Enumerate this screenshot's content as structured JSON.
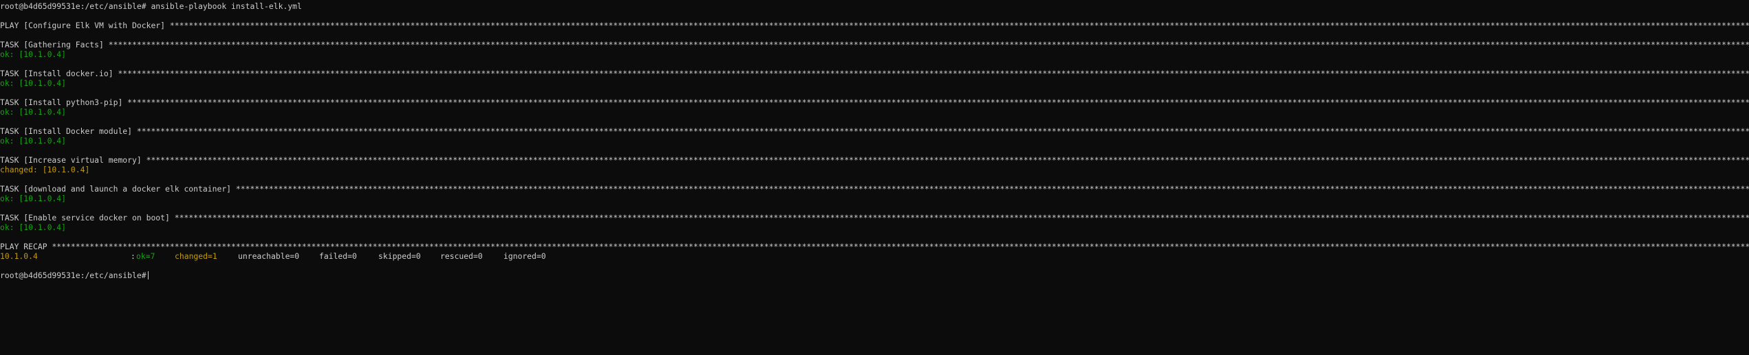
{
  "terminal": {
    "prompt": "root@b4d65d99531e:/etc/ansible#",
    "command": "ansible-playbook install-elk.yml",
    "play": {
      "header": "PLAY [Configure Elk VM with Docker]"
    },
    "tasks": [
      {
        "header": "TASK [Gathering Facts]",
        "status": "ok",
        "result": "ok: [10.1.0.4]"
      },
      {
        "header": "TASK [Install docker.io]",
        "status": "ok",
        "result": "ok: [10.1.0.4]"
      },
      {
        "header": "TASK [Install python3-pip]",
        "status": "ok",
        "result": "ok: [10.1.0.4]"
      },
      {
        "header": "TASK [Install Docker module]",
        "status": "ok",
        "result": "ok: [10.1.0.4]"
      },
      {
        "header": "TASK [Increase virtual memory]",
        "status": "changed",
        "result": "changed: [10.1.0.4]"
      },
      {
        "header": "TASK [download and launch a docker elk container]",
        "status": "ok",
        "result": "ok: [10.1.0.4]"
      },
      {
        "header": "TASK [Enable service docker on boot]",
        "status": "ok",
        "result": "ok: [10.1.0.4]"
      }
    ],
    "recap": {
      "header": "PLAY RECAP",
      "host": "10.1.0.4",
      "colon": ":",
      "ok": "ok=7",
      "changed": "changed=1",
      "unreachable": "unreachable=0",
      "failed": "failed=0",
      "skipped": "skipped=0",
      "rescued": "rescued=0",
      "ignored": "ignored=0"
    },
    "final_prompt": "root@b4d65d99531e:/etc/ansible#",
    "colors": {
      "background": "#0c0c0c",
      "text": "#cccccc",
      "ok": "#13a10e",
      "changed": "#c19c00"
    }
  }
}
